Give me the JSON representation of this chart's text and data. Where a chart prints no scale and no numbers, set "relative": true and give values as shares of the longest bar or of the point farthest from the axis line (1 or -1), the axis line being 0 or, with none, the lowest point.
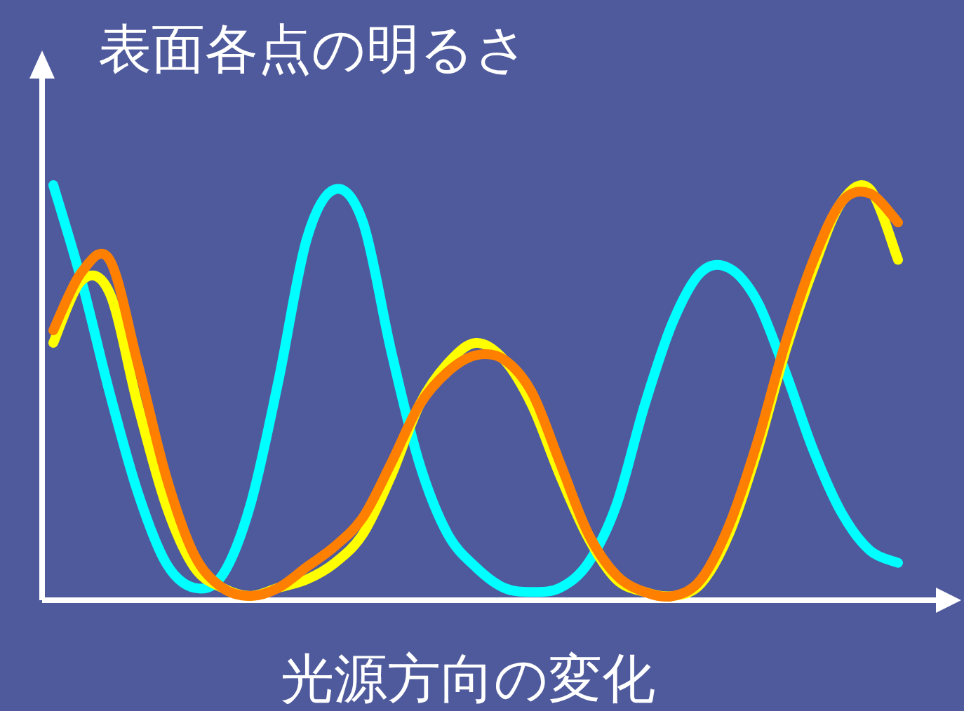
{
  "chart_data": {
    "type": "line",
    "relative": true,
    "title": "表面各点の明るさ",
    "xlabel": "光源方向の変化",
    "categories": [
      null,
      null,
      null,
      null,
      null,
      null,
      null,
      null,
      null,
      null,
      null,
      null,
      null,
      null,
      null,
      null,
      null,
      null,
      null,
      null,
      null,
      null,
      null,
      null,
      null,
      null,
      null,
      null,
      null,
      null,
      null
    ],
    "series": [
      {
        "color": "#00ffff",
        "values": [
          1.0,
          0.77,
          0.5,
          0.26,
          0.09,
          0.03,
          0.06,
          0.23,
          0.53,
          0.87,
          0.99,
          0.91,
          0.6,
          0.33,
          0.16,
          0.08,
          0.03,
          0.02,
          0.03,
          0.09,
          0.23,
          0.47,
          0.67,
          0.79,
          0.8,
          0.72,
          0.55,
          0.36,
          0.21,
          0.12,
          0.09
        ]
      },
      {
        "color": "#ffff00",
        "values": [
          0.62,
          0.77,
          0.74,
          0.47,
          0.23,
          0.08,
          0.03,
          0.01,
          0.03,
          0.05,
          0.09,
          0.16,
          0.3,
          0.47,
          0.57,
          0.62,
          0.58,
          0.47,
          0.3,
          0.15,
          0.05,
          0.02,
          0.01,
          0.04,
          0.16,
          0.36,
          0.6,
          0.8,
          0.96,
          0.99,
          0.82
        ]
      },
      {
        "color": "#ff8000",
        "values": [
          0.65,
          0.79,
          0.82,
          0.57,
          0.3,
          0.11,
          0.03,
          0.01,
          0.03,
          0.08,
          0.13,
          0.2,
          0.33,
          0.47,
          0.55,
          0.59,
          0.58,
          0.5,
          0.33,
          0.16,
          0.06,
          0.02,
          0.01,
          0.05,
          0.18,
          0.38,
          0.62,
          0.82,
          0.96,
          0.98,
          0.91
        ]
      }
    ],
    "line_style": "solid",
    "grid": false
  }
}
